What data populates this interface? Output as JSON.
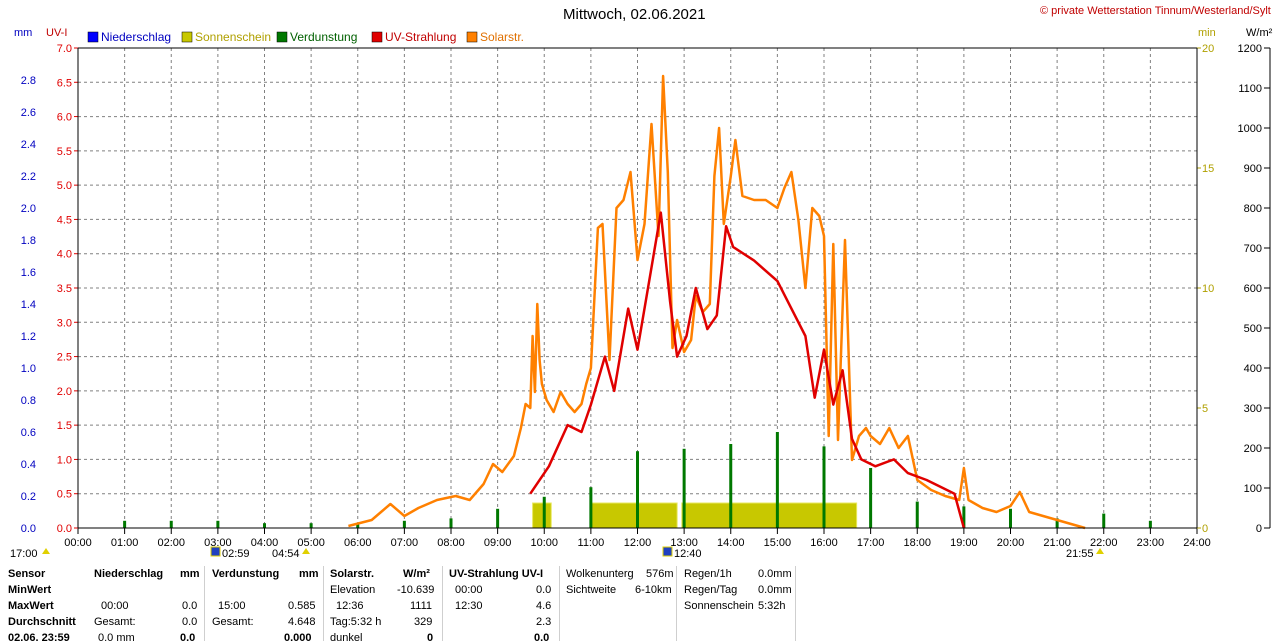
{
  "header": {
    "title": "Mittwoch, 02.06.2021",
    "copyright": "© private Wetterstation Tinnum/Westerland/Sylt",
    "unit_mm": "mm",
    "unit_uv": "UV-I",
    "unit_min": "min",
    "unit_wm2": "W/m²"
  },
  "colors": {
    "niederschlag": "#0000ff",
    "sonnenschein": "#c8c800",
    "verdunstung": "#007800",
    "uv": "#e00000",
    "solar": "#ff8000",
    "grid": "#808080"
  },
  "chart_data": {
    "type": "line",
    "legend": [
      "Niederschlag",
      "Sonnenschein",
      "Verdunstung",
      "UV-Strahlung",
      "Solarstr."
    ],
    "x_ticks": [
      "00:00",
      "01:00",
      "02:00",
      "03:00",
      "04:00",
      "05:00",
      "06:00",
      "07:00",
      "08:00",
      "09:00",
      "10:00",
      "11:00",
      "12:00",
      "13:00",
      "14:00",
      "15:00",
      "16:00",
      "17:00",
      "18:00",
      "19:00",
      "20:00",
      "21:00",
      "22:00",
      "23:00",
      "24:00"
    ],
    "x_range_h": [
      0,
      24
    ],
    "mm_axis": {
      "range": [
        0,
        3.0
      ],
      "ticks": [
        "0.0",
        "0.2",
        "0.4",
        "0.6",
        "0.8",
        "1.0",
        "1.2",
        "1.4",
        "1.6",
        "1.8",
        "2.0",
        "2.2",
        "2.4",
        "2.6",
        "2.8"
      ]
    },
    "uv_axis": {
      "range": [
        0,
        7.0
      ],
      "ticks": [
        "0.0",
        "0.5",
        "1.0",
        "1.5",
        "2.0",
        "2.5",
        "3.0",
        "3.5",
        "4.0",
        "4.5",
        "5.0",
        "5.5",
        "6.0",
        "6.5",
        "7.0"
      ]
    },
    "min_axis": {
      "range": [
        0,
        20
      ],
      "ticks": [
        "0",
        "5",
        "10",
        "15",
        "20"
      ]
    },
    "wm2_axis": {
      "range": [
        0,
        1200
      ],
      "ticks": [
        "0",
        "100",
        "200",
        "300",
        "400",
        "500",
        "600",
        "700",
        "800",
        "900",
        "1000",
        "1100",
        "1200"
      ]
    },
    "solar_wm2": [
      [
        5.8,
        5
      ],
      [
        6.3,
        20
      ],
      [
        6.7,
        60
      ],
      [
        7.0,
        30
      ],
      [
        7.3,
        50
      ],
      [
        7.7,
        70
      ],
      [
        8.1,
        80
      ],
      [
        8.4,
        70
      ],
      [
        8.7,
        110
      ],
      [
        8.9,
        160
      ],
      [
        9.1,
        140
      ],
      [
        9.35,
        180
      ],
      [
        9.5,
        250
      ],
      [
        9.6,
        310
      ],
      [
        9.7,
        300
      ],
      [
        9.75,
        480
      ],
      [
        9.8,
        340
      ],
      [
        9.85,
        560
      ],
      [
        9.9,
        420
      ],
      [
        9.95,
        360
      ],
      [
        10.05,
        320
      ],
      [
        10.2,
        290
      ],
      [
        10.35,
        340
      ],
      [
        10.5,
        310
      ],
      [
        10.65,
        290
      ],
      [
        10.8,
        310
      ],
      [
        10.9,
        360
      ],
      [
        11.0,
        400
      ],
      [
        11.15,
        750
      ],
      [
        11.25,
        760
      ],
      [
        11.4,
        420
      ],
      [
        11.55,
        800
      ],
      [
        11.7,
        820
      ],
      [
        11.85,
        890
      ],
      [
        12.0,
        670
      ],
      [
        12.15,
        760
      ],
      [
        12.3,
        1010
      ],
      [
        12.45,
        730
      ],
      [
        12.55,
        1130
      ],
      [
        12.65,
        890
      ],
      [
        12.75,
        450
      ],
      [
        12.85,
        520
      ],
      [
        13.0,
        440
      ],
      [
        13.15,
        470
      ],
      [
        13.25,
        580
      ],
      [
        13.4,
        540
      ],
      [
        13.55,
        560
      ],
      [
        13.65,
        880
      ],
      [
        13.75,
        1000
      ],
      [
        13.85,
        760
      ],
      [
        14.0,
        880
      ],
      [
        14.1,
        970
      ],
      [
        14.25,
        830
      ],
      [
        14.5,
        820
      ],
      [
        14.75,
        820
      ],
      [
        15.0,
        800
      ],
      [
        15.15,
        850
      ],
      [
        15.3,
        890
      ],
      [
        15.45,
        770
      ],
      [
        15.6,
        600
      ],
      [
        15.75,
        800
      ],
      [
        15.9,
        780
      ],
      [
        16.0,
        730
      ],
      [
        16.1,
        230
      ],
      [
        16.2,
        710
      ],
      [
        16.3,
        220
      ],
      [
        16.45,
        720
      ],
      [
        16.6,
        170
      ],
      [
        16.75,
        230
      ],
      [
        16.9,
        250
      ],
      [
        17.0,
        230
      ],
      [
        17.2,
        210
      ],
      [
        17.4,
        250
      ],
      [
        17.6,
        200
      ],
      [
        17.8,
        230
      ],
      [
        18.0,
        120
      ],
      [
        18.3,
        95
      ],
      [
        18.6,
        80
      ],
      [
        18.9,
        70
      ],
      [
        19.0,
        150
      ],
      [
        19.1,
        70
      ],
      [
        19.4,
        50
      ],
      [
        19.7,
        40
      ],
      [
        20.0,
        55
      ],
      [
        20.2,
        90
      ],
      [
        20.4,
        40
      ],
      [
        20.7,
        30
      ],
      [
        21.0,
        20
      ],
      [
        21.3,
        10
      ],
      [
        21.6,
        0
      ]
    ],
    "uv_index": [
      [
        9.7,
        0.5
      ],
      [
        10.1,
        0.9
      ],
      [
        10.5,
        1.5
      ],
      [
        10.8,
        1.4
      ],
      [
        11.0,
        1.8
      ],
      [
        11.3,
        2.5
      ],
      [
        11.5,
        2.0
      ],
      [
        11.8,
        3.2
      ],
      [
        12.0,
        2.6
      ],
      [
        12.3,
        3.8
      ],
      [
        12.5,
        4.6
      ],
      [
        12.7,
        3.3
      ],
      [
        12.85,
        2.5
      ],
      [
        13.05,
        2.8
      ],
      [
        13.25,
        3.5
      ],
      [
        13.5,
        2.9
      ],
      [
        13.7,
        3.1
      ],
      [
        13.9,
        4.4
      ],
      [
        14.05,
        4.1
      ],
      [
        14.5,
        3.9
      ],
      [
        15.0,
        3.6
      ],
      [
        15.3,
        3.2
      ],
      [
        15.6,
        2.8
      ],
      [
        15.8,
        1.9
      ],
      [
        16.0,
        2.6
      ],
      [
        16.2,
        1.8
      ],
      [
        16.4,
        2.3
      ],
      [
        16.6,
        1.3
      ],
      [
        16.8,
        1.0
      ],
      [
        17.1,
        0.9
      ],
      [
        17.5,
        1.0
      ],
      [
        17.8,
        0.8
      ],
      [
        18.2,
        0.7
      ],
      [
        18.5,
        0.6
      ],
      [
        18.8,
        0.5
      ],
      [
        19.0,
        0.0
      ]
    ],
    "sunshine_blocks_h": [
      [
        9.75,
        10.15
      ],
      [
        11.0,
        12.85
      ],
      [
        12.95,
        16.7
      ]
    ],
    "verdunstung_spikes_min": [
      [
        1.0,
        0.3
      ],
      [
        2.0,
        0.3
      ],
      [
        3.0,
        0.3
      ],
      [
        4.0,
        0.2
      ],
      [
        5.0,
        0.2
      ],
      [
        6.0,
        0.2
      ],
      [
        7.0,
        0.3
      ],
      [
        8.0,
        0.4
      ],
      [
        9.0,
        0.8
      ],
      [
        10.0,
        1.3
      ],
      [
        11.0,
        1.7
      ],
      [
        12.0,
        3.2
      ],
      [
        13.0,
        3.3
      ],
      [
        14.0,
        3.5
      ],
      [
        15.0,
        4.0
      ],
      [
        16.0,
        3.4
      ],
      [
        17.0,
        2.5
      ],
      [
        18.0,
        1.1
      ],
      [
        19.0,
        0.9
      ],
      [
        20.0,
        0.8
      ],
      [
        21.0,
        0.4
      ],
      [
        22.0,
        0.6
      ],
      [
        23.0,
        0.3
      ]
    ]
  },
  "markers": {
    "sunrise_left": "17:00",
    "civil_dawn": "02:59",
    "sunrise": "04:54",
    "culmination": "12:40",
    "sunset": "21:55"
  },
  "table": {
    "row_labels": [
      "Sensor",
      "MinWert",
      "MaxWert",
      "Durchschnitt",
      "02.06. 23:59"
    ],
    "niederschlag": {
      "header": "Niederschlag",
      "unit": "mm",
      "max_time": "00:00",
      "max_val": "0.0",
      "gesamt_label": "Gesamt:",
      "gesamt_val": "0.0",
      "bottom_a": "0.0 mm",
      "bottom_b": "0.0"
    },
    "verdunstung": {
      "header": "Verdunstung",
      "unit": "mm",
      "max_time": "15:00",
      "max_val": "0.585",
      "gesamt_label": "Gesamt:",
      "gesamt_val": "4.648",
      "bottom_b": "0.000"
    },
    "solar": {
      "header": "Solarstr.",
      "unit": "W/m²",
      "elev_label": "Elevation",
      "elev_val": "-10.639",
      "max_time": "12:36",
      "max_val": "1111",
      "tag_label": "Tag:5:32 h",
      "tag_val": "329",
      "bottom_a": "dunkel",
      "bottom_b": "0"
    },
    "uv": {
      "header": "UV-Strahlung UV-I",
      "min_time": "00:00",
      "min_val": "0.0",
      "max_time": "12:30",
      "max_val": "4.6",
      "avg_val": "2.3",
      "bottom_b": "0.0"
    },
    "cloud": {
      "l1": "Wolkenunterg",
      "v1": "576m",
      "l2": "Sichtweite",
      "v2": "6-10km"
    },
    "regen": {
      "l1": "Regen/1h",
      "v1": "0.0mm",
      "l2": "Regen/Tag",
      "v2": "0.0mm",
      "l3": "Sonnenschein",
      "v3": "5:32h"
    }
  }
}
